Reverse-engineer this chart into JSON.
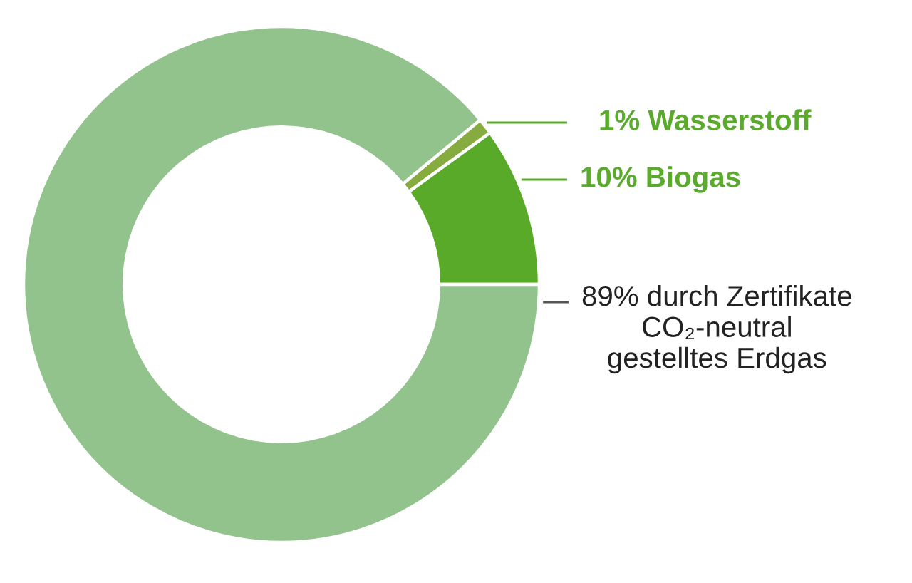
{
  "chart_data": {
    "type": "donut",
    "categories": [
      "Wasserstoff",
      "Biogas",
      "durch Zertifikate\nCO₂-neutral\ngestelltes Erdgas"
    ],
    "values": [
      1,
      10,
      89
    ],
    "colors": [
      "#86ac3f",
      "#5aaa2a",
      "#93c38c"
    ],
    "value_labels": [
      "1%",
      "10%",
      "89%"
    ]
  }
}
